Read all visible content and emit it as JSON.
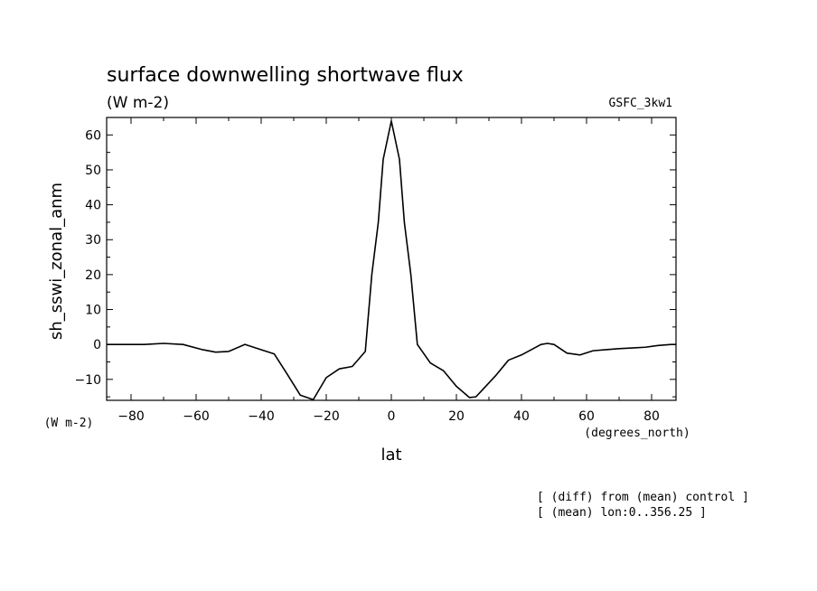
{
  "chart_data": {
    "type": "line",
    "title": "surface downwelling shortwave flux",
    "units": "(W m-2)",
    "model_label": "GSFC_3kw1",
    "xlabel": "lat",
    "ylabel": "sh_sswi_zonal_anm",
    "x_units": "(degrees_north)",
    "y_units": "(W m-2)",
    "xlim": [
      -87.5,
      87.5
    ],
    "ylim": [
      -16,
      65
    ],
    "xticks": [
      -80,
      -60,
      -40,
      -20,
      0,
      20,
      40,
      60,
      80
    ],
    "xtick_labels": [
      "−80",
      "−60",
      "−40",
      "−20",
      "0",
      "20",
      "40",
      "60",
      "80"
    ],
    "yticks": [
      -10,
      0,
      10,
      20,
      30,
      40,
      50,
      60
    ],
    "ytick_labels": [
      "−10",
      "0",
      "10",
      "20",
      "30",
      "40",
      "50",
      "60"
    ],
    "grid": false,
    "series": [
      {
        "x": [
          -87.5,
          -82,
          -76,
          -70,
          -64,
          -58,
          -54,
          -50,
          -45,
          -40,
          -36,
          -32,
          -28,
          -24,
          -20,
          -16,
          -12,
          -8,
          -6,
          -4,
          -2.5,
          0,
          2.5,
          4,
          6,
          8,
          12,
          16,
          20,
          24,
          26,
          28,
          32,
          36,
          40,
          44,
          46,
          48,
          50,
          54,
          58,
          62,
          66,
          70,
          74,
          78,
          82,
          86,
          87.5
        ],
        "y": [
          0,
          0,
          0,
          0.3,
          0,
          -1.5,
          -2.2,
          -2,
          0,
          -1.5,
          -2.7,
          -8.5,
          -14.5,
          -15.8,
          -9.5,
          -7,
          -6.3,
          -2,
          20,
          35,
          53,
          64,
          53,
          35,
          20,
          0,
          -5.3,
          -7.5,
          -12,
          -15.2,
          -15,
          -13,
          -9,
          -4.5,
          -3,
          -1,
          0,
          0.3,
          0,
          -2.5,
          -3,
          -1.8,
          -1.5,
          -1.2,
          -1,
          -0.8,
          -0.3,
          0,
          0
        ]
      }
    ]
  },
  "footnotes": [
    "[ (diff) from (mean) control ]",
    "[ (mean) lon:0..356.25 ]"
  ]
}
